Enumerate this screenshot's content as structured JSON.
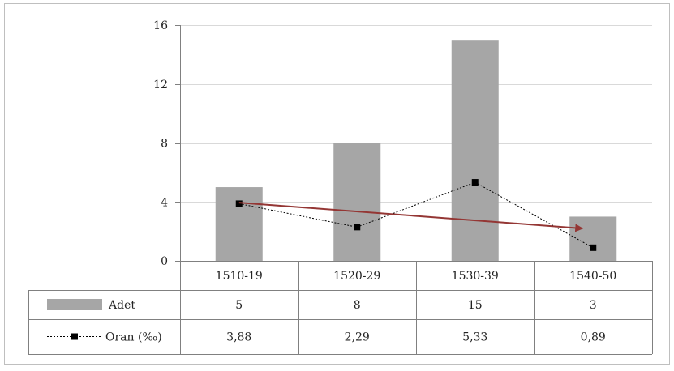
{
  "chart_data": {
    "type": "bar",
    "categories": [
      "1510-19",
      "1520-29",
      "1530-39",
      "1540-50"
    ],
    "series": [
      {
        "name": "Adet",
        "type": "bar",
        "values": [
          5,
          8,
          15,
          3
        ],
        "labels": [
          "5",
          "8",
          "15",
          "3"
        ],
        "color": "#a6a6a6"
      },
      {
        "name": "Oran (‰)",
        "type": "line",
        "values": [
          3.88,
          2.29,
          5.33,
          0.89
        ],
        "labels": [
          "3,88",
          "2,29",
          "5,33",
          "0,89"
        ],
        "color": "#000000",
        "line_style": "dotted",
        "marker": "square"
      }
    ],
    "trend_arrow": {
      "from": 3.95,
      "to": 2.2,
      "color": "#943634"
    },
    "ylim": [
      0,
      16
    ],
    "yticks": [
      "0",
      "4",
      "8",
      "12",
      "16"
    ],
    "grid": true,
    "legend": "data-table"
  }
}
